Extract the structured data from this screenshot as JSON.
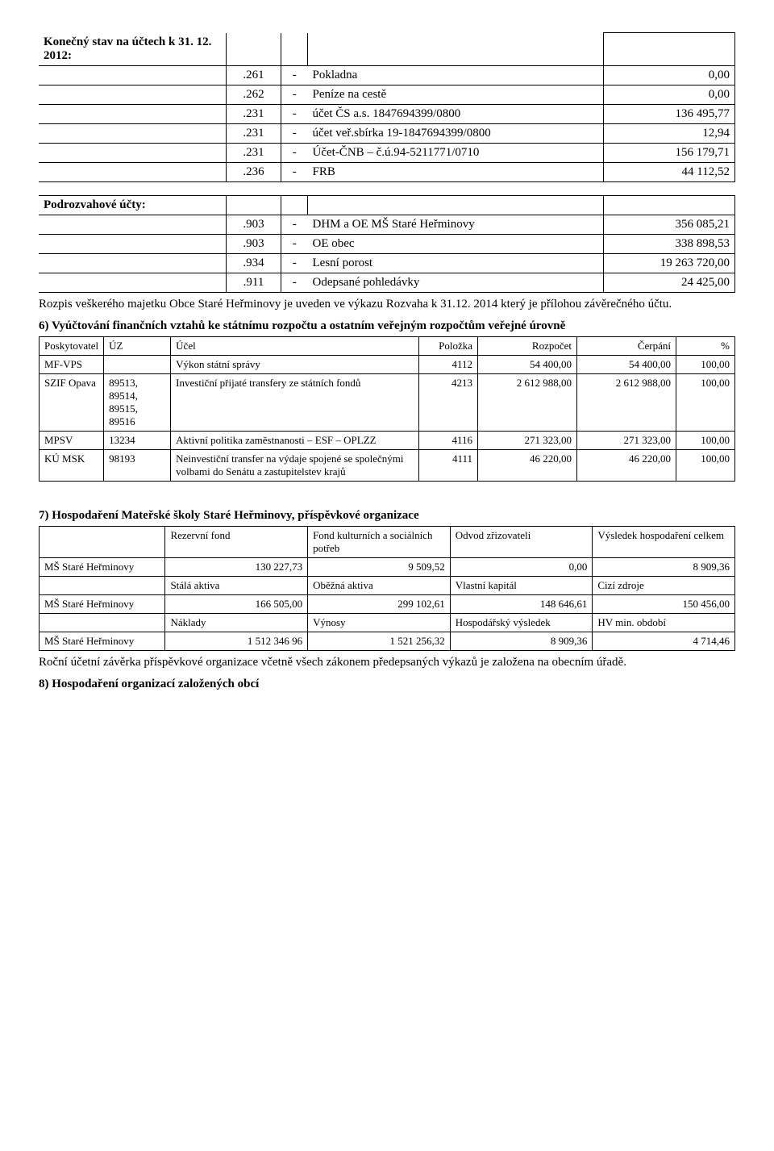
{
  "title": "Konečný stav na účtech k 31. 12. 2012:",
  "accounts1": {
    "rows": [
      {
        "code": ".261",
        "dash": "-",
        "label": "Pokladna",
        "value": "0,00"
      },
      {
        "code": ".262",
        "dash": "-",
        "label": "Peníze na cestě",
        "value": "0,00"
      },
      {
        "code": ".231",
        "dash": "-",
        "label": "účet ČS a.s. 1847694399/0800",
        "value": "136 495,77"
      },
      {
        "code": ".231",
        "dash": "-",
        "label": "účet veř.sbírka 19-1847694399/0800",
        "value": "12,94"
      },
      {
        "code": ".231",
        "dash": "-",
        "label": "Účet-ČNB – č.ú.94-5211771/0710",
        "value": "156 179,71"
      },
      {
        "code": ".236",
        "dash": "-",
        "label": "FRB",
        "value": "44 112,52"
      }
    ]
  },
  "subaccounts_title": "Podrozvahové účty:",
  "accounts2": {
    "rows": [
      {
        "code": ".903",
        "dash": "-",
        "label": "DHM a OE MŠ Staré Heřminovy",
        "value": "356 085,21"
      },
      {
        "code": ".903",
        "dash": "-",
        "label": "OE obec",
        "value": "338 898,53"
      },
      {
        "code": ".934",
        "dash": "-",
        "label": "Lesní porost",
        "value": "19 263 720,00"
      },
      {
        "code": ".911",
        "dash": "-",
        "label": "Odepsané pohledávky",
        "value": "24 425,00"
      }
    ]
  },
  "para1": "Rozpis veškerého majetku Obce Staré Heřminovy je uveden ve výkazu Rozvaha k 31.12. 2014 který je přílohou závěrečného účtu.",
  "section6_title": "6) Vyúčtování finančních vztahů ke státnímu rozpočtu a ostatním veřejným rozpočtům veřejné úrovně",
  "transfers_headers": [
    "Poskytovatel",
    "ÚZ",
    "Účel",
    "Položka",
    "Rozpočet",
    "Čerpání",
    "%"
  ],
  "transfers": [
    {
      "provider": "MF-VPS",
      "uz": "",
      "purpose": "Výkon státní správy",
      "item": "4112",
      "budget": "54 400,00",
      "drawn": "54 400,00",
      "pct": "100,00"
    },
    {
      "provider": "SZIF Opava",
      "uz": "89513, 89514, 89515, 89516",
      "purpose": "Investiční přijaté transfery ze státních fondů",
      "item": "4213",
      "budget": "2 612 988,00",
      "drawn": "2 612 988,00",
      "pct": "100,00"
    },
    {
      "provider": "MPSV",
      "uz": "13234",
      "purpose": "Aktivní politika zaměstnanosti – ESF – OPLZZ",
      "item": "4116",
      "budget": "271 323,00",
      "drawn": "271 323,00",
      "pct": "100,00"
    },
    {
      "provider": "KÚ MSK",
      "uz": "98193",
      "purpose": "Neinvestiční transfer na výdaje spojené se společnými volbami do Senátu a zastupitelstev krajů",
      "item": "4111",
      "budget": "46 220,00",
      "drawn": "46 220,00",
      "pct": "100,00"
    }
  ],
  "section7_title": "7) Hospodaření Mateřské školy Staré Heřminovy, příspěvkové organizace",
  "ms": {
    "entity": "MŠ Staré Heřminovy",
    "block1": {
      "headers": [
        "Rezervní fond",
        "Fond kulturních a sociálních potřeb",
        "Odvod zřizovateli",
        "Výsledek hospodaření celkem"
      ],
      "values": [
        "130 227,73",
        "9 509,52",
        "0,00",
        "8 909,36"
      ]
    },
    "block2": {
      "headers": [
        "Stálá aktiva",
        "Oběžná aktiva",
        "Vlastní kapitál",
        "Cizí zdroje"
      ],
      "values": [
        "166 505,00",
        "299 102,61",
        "148 646,61",
        "150 456,00"
      ]
    },
    "block3": {
      "headers": [
        "Náklady",
        "Výnosy",
        "Hospodářský výsledek",
        "HV min. období"
      ],
      "values": [
        "1 512 346 96",
        "1 521 256,32",
        "8 909,36",
        "4 714,46"
      ]
    }
  },
  "para2": "Roční účetní závěrka příspěvkové organizace včetně všech zákonem předepsaných výkazů je založena na obecním úřadě.",
  "section8_title": "8) Hospodaření organizací založených obcí"
}
